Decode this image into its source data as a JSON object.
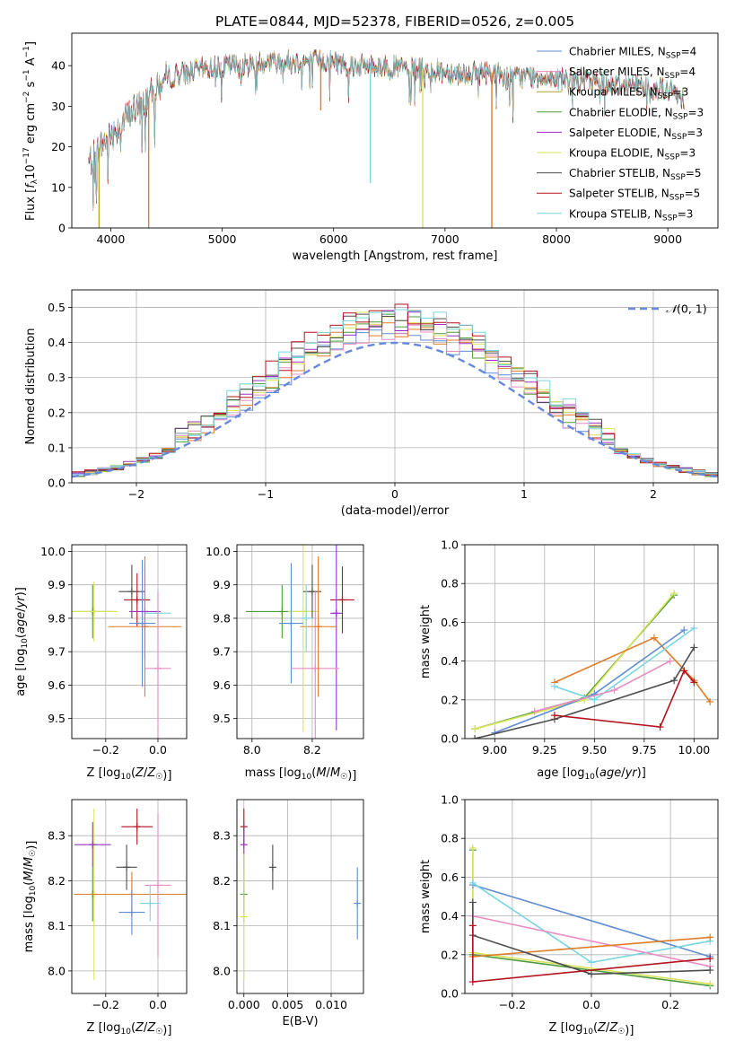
{
  "figure_title": "PLATE=0844, MJD=52378, FIBERID=0526, z=0.005",
  "colors": {
    "Chabrier MILES": "#5f8dd3",
    "Salpeter MILES": "#e88cc2",
    "Kroupa MILES": "#b5a42a",
    "Chabrier ELODIE": "#4f9a3b",
    "Salpeter ELODIE": "#9b31c4",
    "Kroupa ELODIE": "#d9e45a",
    "Chabrier STELIB": "#4d4d4d",
    "Salpeter STELIB": "#b5131f",
    "Kroupa STELIB": "#79d6e0",
    "orange": "#e07b28",
    "lime": "#8cc63f",
    "normal": "#6688dd"
  },
  "chart_data": [
    {
      "id": "spectrum",
      "type": "line",
      "title": "PLATE=0844, MJD=52378, FIBERID=0526, z=0.005",
      "xlabel": "wavelength [Angstrom, rest frame]",
      "ylabel": "Flux [f_λ 10^-17 erg cm^-2 s^-1 A^-1]",
      "xlim": [
        3650,
        9450
      ],
      "ylim": [
        0,
        48
      ],
      "xticks": [
        4000,
        5000,
        6000,
        7000,
        8000,
        9000
      ],
      "yticks": [
        0,
        10,
        20,
        30,
        40
      ],
      "grid": false,
      "legend_position": "top-right",
      "legend": [
        {
          "label": "Chabrier MILES, N",
          "sub": "SSP",
          "tail": "=4",
          "color": "#5f8dd3"
        },
        {
          "label": "Salpeter MILES, N",
          "sub": "SSP",
          "tail": "=4",
          "color": "#e88cc2"
        },
        {
          "label": "Kroupa MILES, N",
          "sub": "SSP",
          "tail": "=3",
          "color": "#b5a42a"
        },
        {
          "label": "Chabrier ELODIE, N",
          "sub": "SSP",
          "tail": "=3",
          "color": "#4f9a3b"
        },
        {
          "label": "Salpeter ELODIE, N",
          "sub": "SSP",
          "tail": "=3",
          "color": "#9b31c4"
        },
        {
          "label": "Kroupa ELODIE, N",
          "sub": "SSP",
          "tail": "=3",
          "color": "#d9e45a"
        },
        {
          "label": "Chabrier STELIB, N",
          "sub": "SSP",
          "tail": "=5",
          "color": "#4d4d4d"
        },
        {
          "label": "Salpeter STELIB, N",
          "sub": "SSP",
          "tail": "=5",
          "color": "#b5131f"
        },
        {
          "label": "Kroupa STELIB, N",
          "sub": "SSP",
          "tail": "=3",
          "color": "#79d6e0"
        }
      ],
      "continuum": [
        [
          3800,
          16
        ],
        [
          3900,
          20
        ],
        [
          4000,
          23
        ],
        [
          4100,
          26
        ],
        [
          4200,
          29
        ],
        [
          4300,
          31
        ],
        [
          4400,
          34
        ],
        [
          4500,
          37
        ],
        [
          4600,
          38
        ],
        [
          4800,
          39
        ],
        [
          5000,
          40
        ],
        [
          5200,
          40
        ],
        [
          5400,
          41
        ],
        [
          5600,
          41
        ],
        [
          5800,
          41
        ],
        [
          6000,
          41
        ],
        [
          6200,
          40
        ],
        [
          6400,
          40
        ],
        [
          6600,
          39.5
        ],
        [
          6800,
          39
        ],
        [
          7000,
          38.5
        ],
        [
          7200,
          38
        ],
        [
          7400,
          38.5
        ],
        [
          7600,
          37
        ],
        [
          7800,
          37.5
        ],
        [
          8000,
          37
        ],
        [
          8200,
          36.5
        ],
        [
          8400,
          36
        ],
        [
          8600,
          35.5
        ],
        [
          8800,
          35
        ],
        [
          9000,
          34
        ],
        [
          9150,
          32
        ]
      ],
      "dropouts": [
        {
          "x": 3895,
          "y": 0,
          "color": "#b5a42a"
        },
        {
          "x": 4340,
          "y": 0,
          "color": "#e07b28"
        },
        {
          "x": 5885,
          "y": 29,
          "color": "#e07b28"
        },
        {
          "x": 6330,
          "y": 11,
          "color": "#79d6e0"
        },
        {
          "x": 6800,
          "y": 0,
          "color": "#d9e45a"
        },
        {
          "x": 7420,
          "y": 0,
          "color": "#e07b28"
        }
      ]
    },
    {
      "id": "residual_histogram",
      "type": "line",
      "xlabel": "(data-model)/error",
      "ylabel": "Normed distribution",
      "xlim": [
        -2.5,
        2.5
      ],
      "ylim": [
        0,
        0.55
      ],
      "xticks": [
        -2,
        -1,
        0,
        1,
        2
      ],
      "yticks": [
        0.0,
        0.1,
        0.2,
        0.3,
        0.4,
        0.5
      ],
      "grid": true,
      "legend_position": "top-right",
      "legend": [
        {
          "label": "N(0,1)",
          "color": "#6688dd",
          "style": "dashed"
        }
      ],
      "bin_width": 0.1,
      "reference_curve": "normal distribution, mean 0, sigma 1"
    },
    {
      "id": "age_vs_Z",
      "type": "scatter",
      "xlabel": "Z [log10(Z/Z☉)]",
      "ylabel": "age  [log10(age/yr)]",
      "xlim": [
        -0.33,
        0.11
      ],
      "ylim": [
        9.44,
        10.02
      ],
      "xticks": [
        -0.2,
        0.0
      ],
      "yticks": [
        9.5,
        9.6,
        9.7,
        9.8,
        9.9,
        10.0
      ],
      "grid": true,
      "points": [
        {
          "x": -0.25,
          "y": 9.82,
          "xerr": 0.08,
          "yerr": 0.08,
          "color": "#4f9a3b"
        },
        {
          "x": -0.245,
          "y": 9.82,
          "xerr": 0.09,
          "yerr": 0.09,
          "color": "#d9e45a"
        },
        {
          "x": -0.1,
          "y": 9.88,
          "xerr": 0.05,
          "yerr": 0.08,
          "color": "#4d4d4d"
        },
        {
          "x": -0.08,
          "y": 9.855,
          "xerr": 0.05,
          "yerr": 0.08,
          "color": "#b5131f"
        },
        {
          "x": -0.06,
          "y": 9.785,
          "xerr": 0.05,
          "yerr": 0.19,
          "color": "#5f8dd3"
        },
        {
          "x": -0.05,
          "y": 9.82,
          "xerr": 0.06,
          "yerr": 0.14,
          "color": "#9b31c4"
        },
        {
          "x": 0.0,
          "y": 9.815,
          "xerr": 0.05,
          "yerr": 0.07,
          "color": "#79d6e0"
        },
        {
          "x": -0.05,
          "y": 9.775,
          "xerr": 0.14,
          "yerr": 0.21,
          "color": "#e07b28"
        },
        {
          "x": 0.0,
          "y": 9.65,
          "xerr": 0.05,
          "yerr": 0.23,
          "color": "#e88cc2"
        }
      ]
    },
    {
      "id": "age_vs_mass",
      "type": "scatter",
      "xlabel": "mass [log10(M/M☉)]",
      "ylabel": "",
      "xlim": [
        7.95,
        8.37
      ],
      "ylim": [
        9.44,
        10.02
      ],
      "xticks": [
        8.0,
        8.2
      ],
      "yticks": [
        9.5,
        9.6,
        9.7,
        9.8,
        9.9,
        10.0
      ],
      "grid": true,
      "points": [
        {
          "x": 8.1,
          "y": 9.82,
          "xerr": 0.12,
          "yerr": 0.08,
          "color": "#4f9a3b"
        },
        {
          "x": 8.17,
          "y": 9.82,
          "xerr": 0.05,
          "yerr": 0.36,
          "color": "#d9e45a"
        },
        {
          "x": 8.13,
          "y": 9.785,
          "xerr": 0.04,
          "yerr": 0.18,
          "color": "#5f8dd3"
        },
        {
          "x": 8.2,
          "y": 9.88,
          "xerr": 0.03,
          "yerr": 0.08,
          "color": "#4d4d4d"
        },
        {
          "x": 8.3,
          "y": 9.855,
          "xerr": 0.04,
          "yerr": 0.1,
          "color": "#b5131f"
        },
        {
          "x": 8.28,
          "y": 9.815,
          "xerr": 0.02,
          "yerr": 0.35,
          "color": "#9b31c4"
        },
        {
          "x": 8.21,
          "y": 9.65,
          "xerr": 0.08,
          "yerr": 0.23,
          "color": "#e88cc2"
        },
        {
          "x": 8.22,
          "y": 9.775,
          "xerr": 0.06,
          "yerr": 0.21,
          "color": "#e07b28"
        },
        {
          "x": 8.18,
          "y": 9.8,
          "xerr": 0.02,
          "yerr": 0.1,
          "color": "#79d6e0"
        }
      ]
    },
    {
      "id": "massweight_vs_age",
      "type": "line",
      "xlabel": "age  [log10(age/yr)]",
      "ylabel": "mass weight",
      "xlim": [
        8.85,
        10.12
      ],
      "ylim": [
        0,
        1
      ],
      "xticks": [
        9.0,
        9.25,
        9.5,
        9.75,
        10.0
      ],
      "yticks": [
        0.0,
        0.2,
        0.4,
        0.6,
        0.8,
        1.0
      ],
      "grid": true,
      "series": [
        {
          "color": "#4f9a3b",
          "x": [
            8.9,
            9.45,
            9.9
          ],
          "y": [
            0.05,
            0.21,
            0.74
          ]
        },
        {
          "color": "#d9e45a",
          "x": [
            8.9,
            9.45,
            9.9
          ],
          "y": [
            0.05,
            0.2,
            0.75
          ]
        },
        {
          "color": "#e07b28",
          "x": [
            9.3,
            9.8,
            10.0,
            10.08
          ],
          "y": [
            0.29,
            0.52,
            0.3,
            0.19
          ]
        },
        {
          "color": "#5f8dd3",
          "x": [
            9.0,
            9.5,
            9.95
          ],
          "y": [
            0.03,
            0.23,
            0.56
          ]
        },
        {
          "color": "#79d6e0",
          "x": [
            9.3,
            9.5,
            10.0
          ],
          "y": [
            0.27,
            0.2,
            0.57
          ]
        },
        {
          "color": "#e88cc2",
          "x": [
            9.2,
            9.6,
            9.88
          ],
          "y": [
            0.14,
            0.25,
            0.4
          ]
        },
        {
          "color": "#4d4d4d",
          "x": [
            8.9,
            9.3,
            9.9,
            10.0
          ],
          "y": [
            0.0,
            0.1,
            0.3,
            0.47
          ]
        },
        {
          "color": "#b5131f",
          "x": [
            9.3,
            9.83,
            9.95,
            10.0
          ],
          "y": [
            0.12,
            0.06,
            0.35,
            0.29
          ]
        }
      ]
    },
    {
      "id": "mass_vs_Z",
      "type": "scatter",
      "xlabel": "Z [log10(Z/Z☉)]",
      "ylabel": "mass [log10(M/M☉)]",
      "xlim": [
        -0.33,
        0.11
      ],
      "ylim": [
        7.95,
        8.38
      ],
      "xticks": [
        -0.2,
        0.0
      ],
      "yticks": [
        8.0,
        8.1,
        8.2,
        8.3
      ],
      "grid": true,
      "points": [
        {
          "x": -0.25,
          "y": 8.17,
          "xerr": 0.07,
          "yerr": 0.06,
          "color": "#4f9a3b"
        },
        {
          "x": -0.245,
          "y": 8.17,
          "xerr": 0.08,
          "yerr": 0.19,
          "color": "#d9e45a"
        },
        {
          "x": -0.25,
          "y": 8.28,
          "xerr": 0.07,
          "yerr": 0.05,
          "color": "#9b31c4"
        },
        {
          "x": -0.08,
          "y": 8.32,
          "xerr": 0.06,
          "yerr": 0.04,
          "color": "#b5131f"
        },
        {
          "x": -0.12,
          "y": 8.23,
          "xerr": 0.04,
          "yerr": 0.05,
          "color": "#4d4d4d"
        },
        {
          "x": -0.1,
          "y": 8.17,
          "xerr": 0.22,
          "yerr": 0.05,
          "color": "#e07b28"
        },
        {
          "x": -0.1,
          "y": 8.13,
          "xerr": 0.05,
          "yerr": 0.05,
          "color": "#5f8dd3"
        },
        {
          "x": 0.0,
          "y": 8.19,
          "xerr": 0.05,
          "yerr": 0.16,
          "color": "#e88cc2"
        },
        {
          "x": -0.03,
          "y": 8.15,
          "xerr": 0.04,
          "yerr": 0.04,
          "color": "#79d6e0"
        }
      ]
    },
    {
      "id": "mass_vs_EBV",
      "type": "scatter",
      "xlabel": "E(B-V)",
      "ylabel": "",
      "xlim": [
        -0.0008,
        0.0137
      ],
      "ylim": [
        7.95,
        8.38
      ],
      "xticks": [
        0.0,
        0.005,
        0.01
      ],
      "xtick_labels": [
        "0.000",
        "0.005",
        "0.010"
      ],
      "yticks": [
        8.0,
        8.1,
        8.2,
        8.3
      ],
      "grid": true,
      "points": [
        {
          "x": 0.0,
          "y": 8.32,
          "yerr": 0.04,
          "color": "#b5131f"
        },
        {
          "x": 0.0,
          "y": 8.28,
          "yerr": 0.05,
          "color": "#9b31c4"
        },
        {
          "x": 0.0,
          "y": 8.17,
          "yerr": 0.06,
          "color": "#4f9a3b"
        },
        {
          "x": 0.0,
          "y": 8.12,
          "yerr": 0.14,
          "color": "#d9e45a"
        },
        {
          "x": 0.0033,
          "y": 8.23,
          "yerr": 0.05,
          "color": "#4d4d4d"
        },
        {
          "x": 0.013,
          "y": 8.15,
          "yerr": 0.08,
          "color": "#5f8dd3"
        }
      ]
    },
    {
      "id": "massweight_vs_Z",
      "type": "line",
      "xlabel": "Z [log10(Z/Z☉)]",
      "ylabel": "mass weight",
      "xlim": [
        -0.32,
        0.32
      ],
      "ylim": [
        0,
        1
      ],
      "xticks": [
        -0.2,
        0.0,
        0.2
      ],
      "yticks": [
        0.0,
        0.2,
        0.4,
        0.6,
        0.8,
        1.0
      ],
      "grid": true,
      "series": [
        {
          "color": "#4f9a3b",
          "x": [
            -0.3,
            -0.3,
            0.3
          ],
          "y": [
            0.74,
            0.2,
            0.04
          ]
        },
        {
          "color": "#d9e45a",
          "x": [
            -0.3,
            -0.3,
            0.3
          ],
          "y": [
            0.75,
            0.21,
            0.05
          ]
        },
        {
          "color": "#5f8dd3",
          "x": [
            -0.3,
            0.3
          ],
          "y": [
            0.56,
            0.19
          ]
        },
        {
          "color": "#79d6e0",
          "x": [
            -0.3,
            0.0,
            0.3
          ],
          "y": [
            0.57,
            0.16,
            0.27
          ]
        },
        {
          "color": "#e88cc2",
          "x": [
            -0.3,
            0.3
          ],
          "y": [
            0.4,
            0.14
          ]
        },
        {
          "color": "#e07b28",
          "x": [
            -0.3,
            0.3
          ],
          "y": [
            0.19,
            0.29
          ]
        },
        {
          "color": "#4d4d4d",
          "x": [
            -0.3,
            -0.3,
            0.0,
            0.3
          ],
          "y": [
            0.47,
            0.3,
            0.1,
            0.12
          ]
        },
        {
          "color": "#b5131f",
          "x": [
            -0.3,
            -0.3,
            0.3
          ],
          "y": [
            0.35,
            0.06,
            0.18
          ]
        }
      ]
    }
  ]
}
